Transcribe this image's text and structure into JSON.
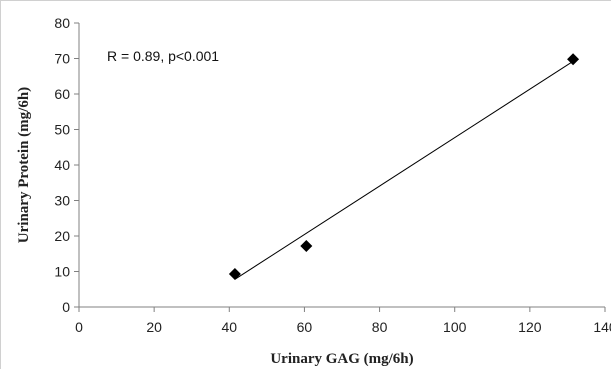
{
  "chart_data": {
    "type": "scatter",
    "xlabel": "Urinary GAG (mg/6h)",
    "ylabel": "Urinary Protein (mg/6h)",
    "xlim": [
      0,
      140
    ],
    "ylim": [
      0,
      80
    ],
    "x_ticks": [
      "0",
      "20",
      "40",
      "60",
      "80",
      "100",
      "120",
      "140"
    ],
    "y_ticks": [
      "0",
      "10",
      "20",
      "30",
      "40",
      "50",
      "60",
      "70",
      "80"
    ],
    "points": [
      {
        "x": 41.5,
        "y": 9.3
      },
      {
        "x": 60.5,
        "y": 17.2
      },
      {
        "x": 131.5,
        "y": 69.8
      }
    ],
    "trendline": {
      "x": [
        41.5,
        131.5
      ],
      "y": [
        7.8,
        69.2
      ]
    },
    "annotation": "R = 0.89,  p<0.001",
    "marker": "diamond",
    "grid": false,
    "legend": "none",
    "colors": {
      "marker": "#000000",
      "line": "#000000",
      "axis": "#808080"
    }
  }
}
